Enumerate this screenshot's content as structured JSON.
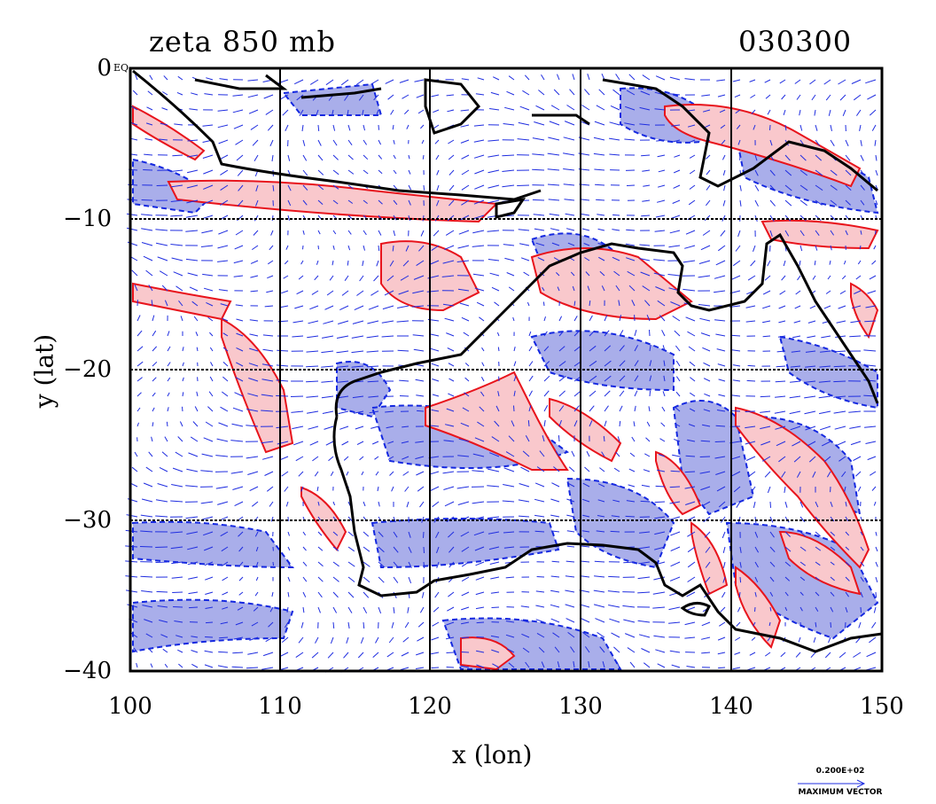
{
  "title_left": "zeta 850 mb",
  "title_right": "030300",
  "xlabel": "x (lon)",
  "ylabel": "y (lat)",
  "equator_label": "EQ",
  "x_ticks": [
    "100",
    "110",
    "120",
    "130",
    "140",
    "150"
  ],
  "y_ticks": [
    "0",
    "−10",
    "−20",
    "−30",
    "−40"
  ],
  "max_vector_value": "0.200E+02",
  "max_vector_label": "MAXIMUM VECTOR",
  "colors": {
    "positive_fill": "#f9c8cc",
    "positive_line": "#e8141c",
    "negative_fill": "#a9aeea",
    "negative_line": "#1428e0",
    "vector": "#1f2de0",
    "coast": "#000000"
  },
  "map_extent": {
    "lon": [
      100,
      150
    ],
    "lat": [
      -40,
      0
    ]
  }
}
